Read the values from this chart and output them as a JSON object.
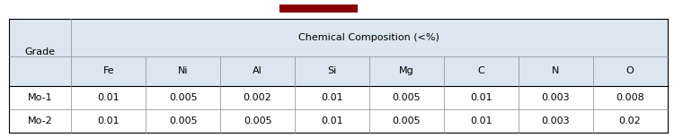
{
  "header_bg": "#dce6f1",
  "data_bg": "#ffffff",
  "border_color": "#888888",
  "outer_border_color": "#000000",
  "title": "Chemical Composition (<%)",
  "col_header": [
    "Fe",
    "Ni",
    "Al",
    "Si",
    "Mg",
    "C",
    "N",
    "O"
  ],
  "rows": [
    [
      "Mo-1",
      "0.01",
      "0.005",
      "0.002",
      "0.01",
      "0.005",
      "0.01",
      "0.003",
      "0.008"
    ],
    [
      "Mo-2",
      "0.01",
      "0.005",
      "0.005",
      "0.01",
      "0.005",
      "0.01",
      "0.003",
      "0.02"
    ]
  ],
  "top_bar_color": "#8b0000",
  "figwidth": 7.5,
  "figheight": 1.54,
  "dpi": 100
}
